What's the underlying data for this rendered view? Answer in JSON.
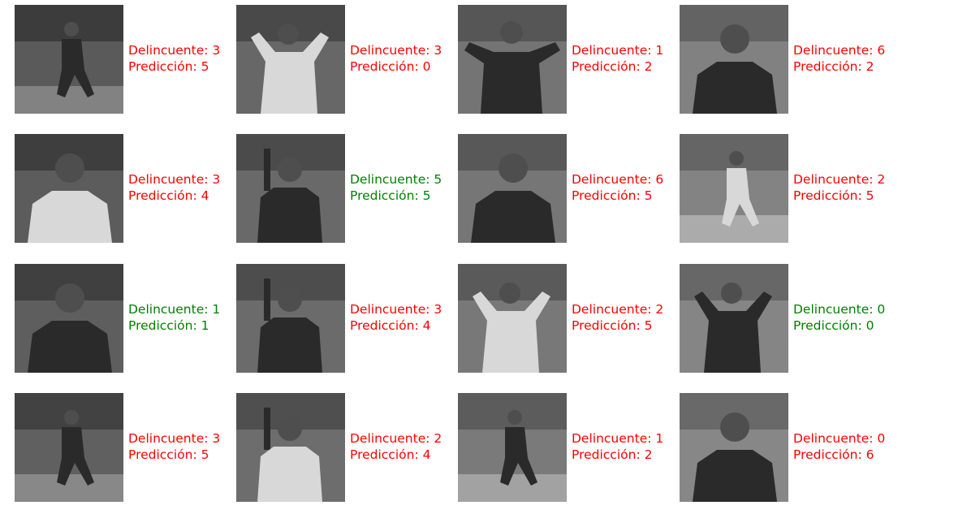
{
  "colors": {
    "correct": "#008000",
    "incorrect": "#ff0000"
  },
  "labels": {
    "actual_prefix": "Delincuente: ",
    "predicted_prefix": "Predicción: "
  },
  "grid": {
    "rows": 4,
    "cols": 4
  },
  "samples": [
    {
      "actual": 3,
      "predicted": 5,
      "photo": "player-running-photo"
    },
    {
      "actual": 3,
      "predicted": 0,
      "photo": "player-celebrating-photo"
    },
    {
      "actual": 1,
      "predicted": 2,
      "photo": "player-cheering-photo"
    },
    {
      "actual": 6,
      "predicted": 2,
      "photo": "player-portrait-photo"
    },
    {
      "actual": 3,
      "predicted": 4,
      "photo": "player-portrait-photo"
    },
    {
      "actual": 5,
      "predicted": 5,
      "photo": "player-pointing-photo"
    },
    {
      "actual": 6,
      "predicted": 5,
      "photo": "player-portrait-photo"
    },
    {
      "actual": 2,
      "predicted": 5,
      "photo": "player-running-photo"
    },
    {
      "actual": 1,
      "predicted": 1,
      "photo": "player-portrait-photo"
    },
    {
      "actual": 3,
      "predicted": 4,
      "photo": "player-pointing-photo"
    },
    {
      "actual": 2,
      "predicted": 5,
      "photo": "player-celebrating-photo"
    },
    {
      "actual": 0,
      "predicted": 0,
      "photo": "player-celebrating-photo"
    },
    {
      "actual": 3,
      "predicted": 5,
      "photo": "player-running-photo"
    },
    {
      "actual": 2,
      "predicted": 4,
      "photo": "player-pointing-photo"
    },
    {
      "actual": 1,
      "predicted": 2,
      "photo": "player-running-photo"
    },
    {
      "actual": 0,
      "predicted": 6,
      "photo": "player-portrait-photo"
    }
  ]
}
